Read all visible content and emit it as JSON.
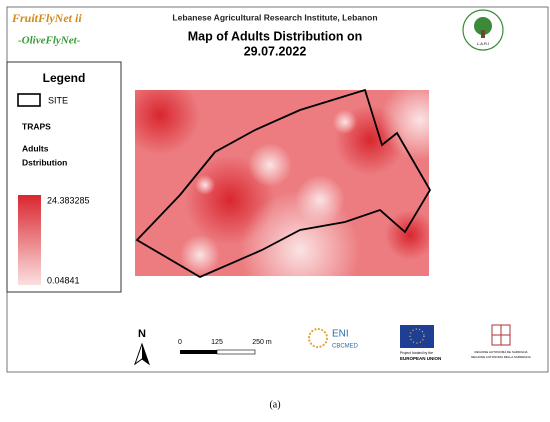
{
  "header": {
    "brand": "FruitFlyNet ii",
    "subbrand": "-OliveFlyNet-",
    "institute": "Lebanese Agricultural Research Institute, Lebanon",
    "title_line1": "Map of Adults Distribution on",
    "title_line2": "29.07.2022",
    "logo_label": "L.A.R.I"
  },
  "legend": {
    "title": "Legend",
    "site": "SITE",
    "traps": "TRAPS",
    "dist_line1": "Adults",
    "dist_line2": "Dstribution",
    "max": "24.383285",
    "min": "0.04841"
  },
  "map": {
    "north": "N",
    "scale": {
      "zero": "0",
      "mid": "125",
      "end": "250 m"
    }
  },
  "footer": {
    "eni": "ENI",
    "cbcmed": "CBCMED",
    "eu_note": "Project funded by the",
    "eu": "EUROPEAN UNION",
    "sardinia_1": "REGIONE AUTONOMA DE SARDIGNA",
    "sardinia_2": "REGIONE AUTONOMA DELLA SARDEGNA"
  },
  "caption": "(a)"
}
